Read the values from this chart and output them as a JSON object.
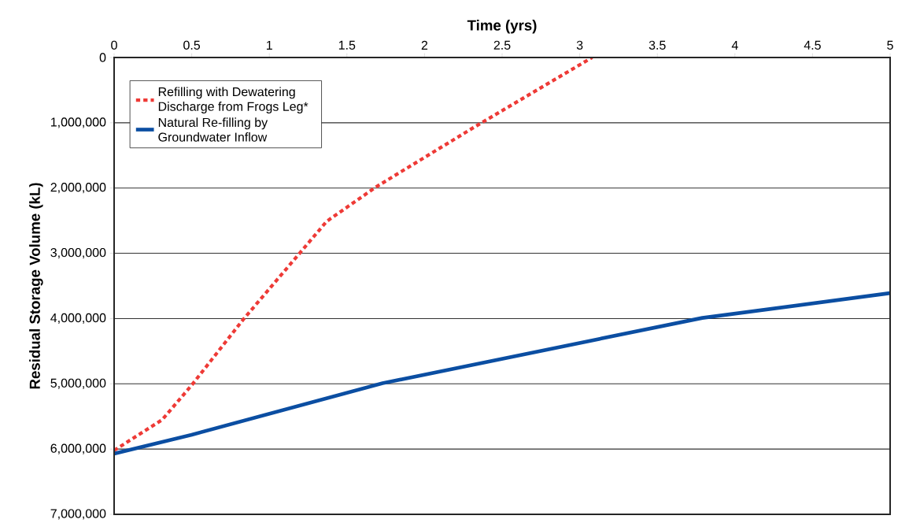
{
  "chart_data": {
    "type": "line",
    "xlabel": "Time (yrs)",
    "ylabel": "Residual Storage Volume (kL)",
    "xlim": [
      0,
      5
    ],
    "xticks": [
      0,
      0.5,
      1,
      1.5,
      2,
      2.5,
      3,
      3.5,
      4,
      4.5,
      5
    ],
    "ylim": [
      7000000,
      0
    ],
    "yticks": [
      0,
      {
        "value": 1000000,
        "label": "1,000,000"
      },
      {
        "value": 2000000,
        "label": "2,000,000"
      },
      {
        "value": 3000000,
        "label": "3,000,000"
      },
      {
        "value": 4000000,
        "label": "4,000,000"
      },
      {
        "value": 5000000,
        "label": "5,000,000"
      },
      {
        "value": 6000000,
        "label": "6,000,000"
      },
      {
        "value": 7000000,
        "label": "7,000,000"
      }
    ],
    "grid": "y",
    "legend": "top left",
    "marker": "none",
    "series": [
      {
        "name": "Refilling with Dewatering Discharge from Frogs Leg*",
        "color": "#ee3a36",
        "line_style": "dotted",
        "x": [
          0,
          0.31,
          0.5,
          0.83,
          1.22,
          1.37,
          1.69,
          2.36,
          3.08
        ],
        "values": [
          6020000,
          5550000,
          5020000,
          4020000,
          2930000,
          2510000,
          1980000,
          1010000,
          0
        ]
      },
      {
        "name": "Natural Re-filling by Groundwater Inflow",
        "color": "#0b4ea2",
        "line_style": "solid",
        "x": [
          0,
          0.5,
          1.73,
          3.79,
          5
        ],
        "values": [
          6070000,
          5780000,
          4990000,
          3990000,
          3610000
        ]
      }
    ]
  }
}
